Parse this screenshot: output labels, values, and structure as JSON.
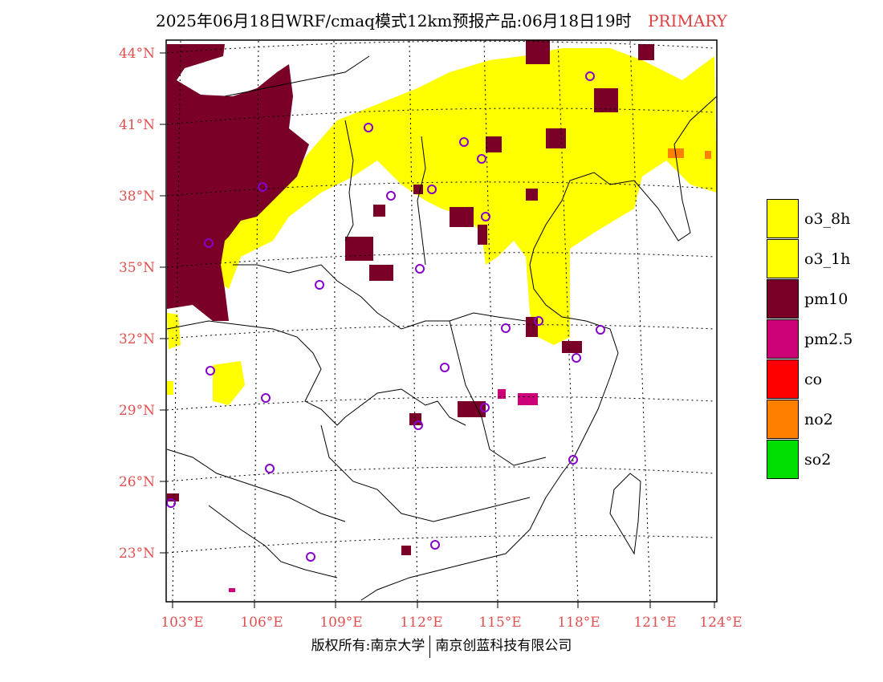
{
  "title": "2025年06月18日WRF/cmaq模式12km预报产品:06月18日19时",
  "primary_label": "PRIMARY",
  "lat_labels": [
    "44°N",
    "41°N",
    "38°N",
    "35°N",
    "32°N",
    "29°N",
    "26°N",
    "23°N"
  ],
  "lon_labels": [
    "103°E",
    "106°E",
    "109°E",
    "112°E",
    "115°E",
    "118°E",
    "121°E",
    "124°E"
  ],
  "legend": [
    {
      "label": "o3_8h",
      "color": "#ffff00"
    },
    {
      "label": "o3_1h",
      "color": "#ffff00"
    },
    {
      "label": "pm10",
      "color": "#7a0028"
    },
    {
      "label": "pm2.5",
      "color": "#cc0077"
    },
    {
      "label": "co",
      "color": "#ff0000"
    },
    {
      "label": "no2",
      "color": "#ff8000"
    },
    {
      "label": "so2",
      "color": "#00dd00"
    }
  ],
  "footer": {
    "left": "版权所有:南京大学",
    "right": "南京创蓝科技有限公司"
  }
}
